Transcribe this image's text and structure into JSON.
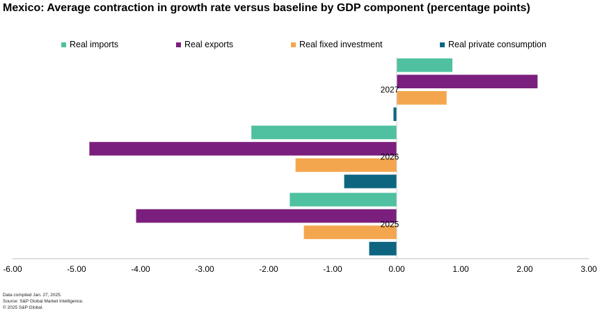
{
  "title": "Mexico: Average contraction in growth rate versus baseline by GDP component (percentage points)",
  "footer": {
    "line1": "Data compiled Jan. 27, 2025.",
    "line2": "Source: S&P Global Market Intelligence.",
    "line3": "© 2025 S&P Global."
  },
  "chart_data": {
    "type": "bar",
    "orientation": "horizontal",
    "categories": [
      "2027",
      "2026",
      "2025"
    ],
    "series": [
      {
        "name": "Real imports",
        "color": "#4fc1a0",
        "values": [
          0.87,
          -2.27,
          -1.67
        ]
      },
      {
        "name": "Real exports",
        "color": "#7b1f7e",
        "values": [
          2.2,
          -4.8,
          -4.07
        ]
      },
      {
        "name": "Real fixed investment",
        "color": "#f4a64f",
        "values": [
          0.78,
          -1.58,
          -1.45
        ]
      },
      {
        "name": "Real private consumption",
        "color": "#0d6580",
        "values": [
          -0.05,
          -0.82,
          -0.43
        ]
      }
    ],
    "xlim": [
      -6,
      3
    ],
    "xticks": [
      -6,
      -5,
      -4,
      -3,
      -2,
      -1,
      0,
      1,
      2,
      3
    ],
    "tick_labels": [
      "-6.00",
      "-5.00",
      "-4.00",
      "-3.00",
      "-2.00",
      "-1.00",
      "0.00",
      "1.00",
      "2.00",
      "3.00"
    ],
    "legend_position": "top",
    "grid": false
  }
}
